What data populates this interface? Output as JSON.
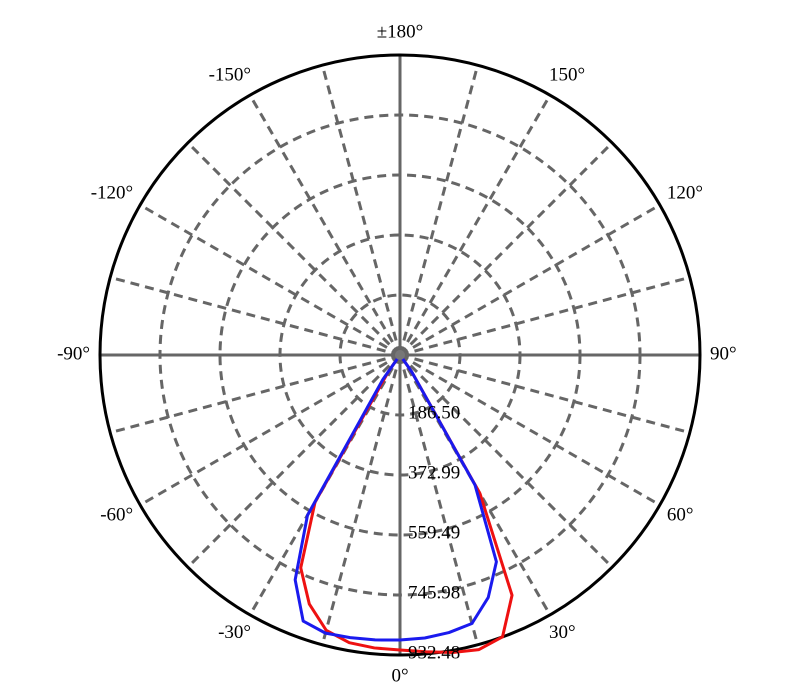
{
  "chart_data": {
    "type": "polar",
    "x": [
      -40,
      -35,
      -30,
      -25,
      -20,
      -15,
      -10,
      -5,
      0,
      5,
      10,
      15,
      20,
      25,
      30,
      35,
      40
    ],
    "series": [
      {
        "color": "#ee1111",
        "values": [
          0,
          62,
          528,
          730,
          824,
          886,
          908,
          914,
          917,
          926,
          939,
          948,
          932,
          824,
          497,
          62,
          0
        ]
      },
      {
        "color": "#1a1aee",
        "values": [
          0,
          93,
          575,
          771,
          880,
          895,
          892,
          889,
          886,
          883,
          876,
          864,
          802,
          709,
          466,
          62,
          0
        ]
      }
    ],
    "ylim": [
      0,
      932.48
    ],
    "yticks": [
      {
        "value": 186.5,
        "label": "186.50"
      },
      372.99,
      559.49,
      745.98,
      932.48
    ],
    "xticks": [
      {
        "value": 0,
        "label": "0°"
      },
      {
        "value": 30,
        "label": "30°"
      },
      {
        "value": 60,
        "label": "60°"
      },
      {
        "value": 90,
        "label": "90°"
      },
      {
        "value": 120,
        "label": "120°"
      },
      {
        "value": 150,
        "label": "150°"
      },
      {
        "value": 180,
        "label": "±180°"
      },
      {
        "value": -150,
        "label": "-150°"
      },
      {
        "value": -120,
        "label": "-120°"
      },
      {
        "value": -90,
        "label": "-90°"
      },
      {
        "value": -60,
        "label": "-60°"
      },
      {
        "value": -30,
        "label": "-30°"
      }
    ],
    "xgrid": [
      0,
      15,
      30,
      45,
      60,
      75,
      90,
      105,
      120,
      135,
      150,
      165,
      180,
      -165,
      -150,
      -135,
      -120,
      -105,
      -90,
      -75,
      -60,
      -45,
      -30,
      -15
    ],
    "grid": true
  }
}
